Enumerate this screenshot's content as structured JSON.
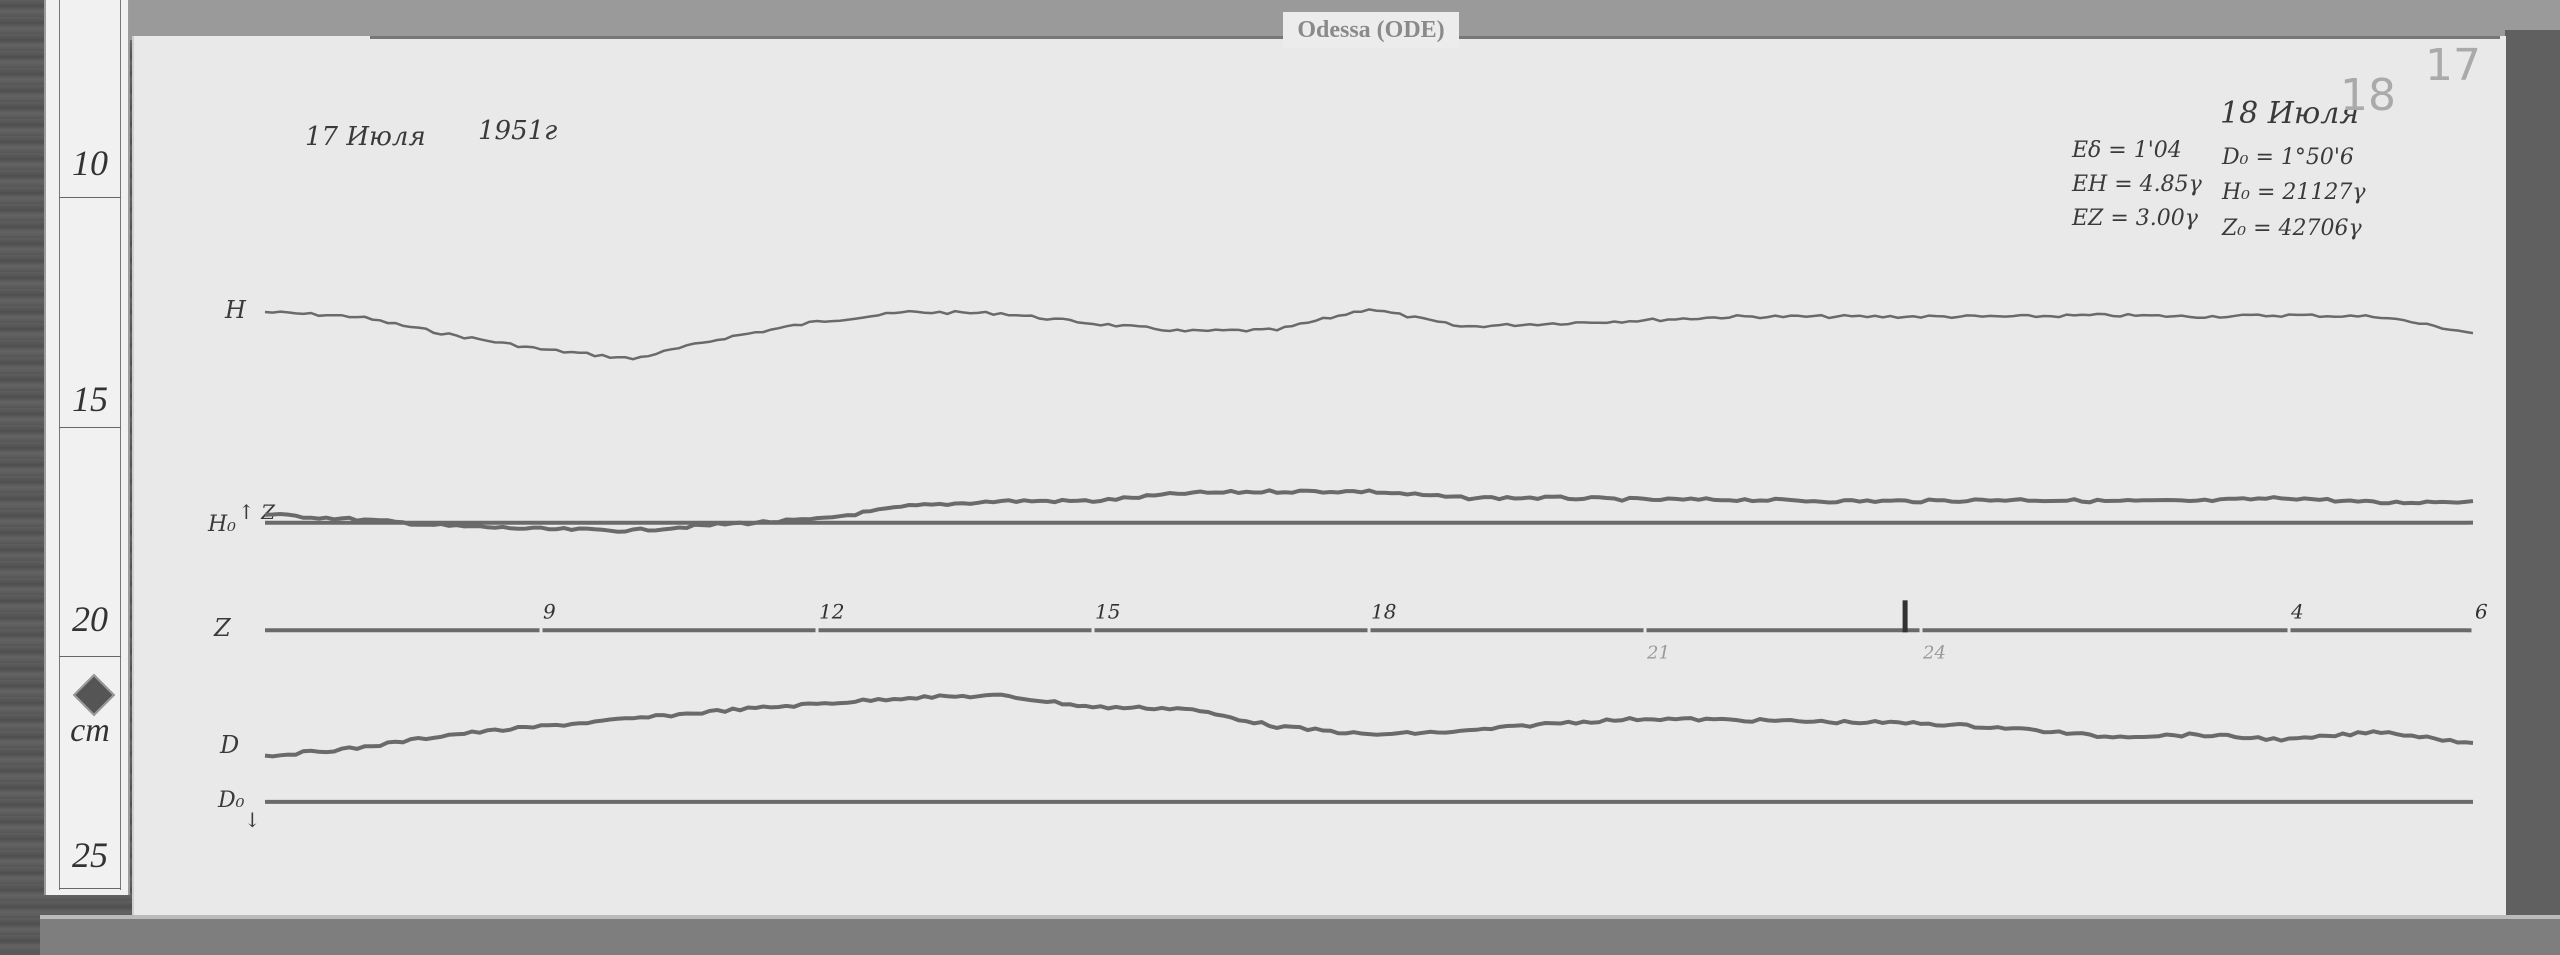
{
  "station_label": "Odessa (ODE)",
  "ruler": {
    "unit": "cm",
    "labels": [
      "10",
      "15",
      "20",
      "25"
    ]
  },
  "header": {
    "date_start": "17 Июля",
    "year": "1951г",
    "date_end": "18 Июля",
    "pencil_marks": [
      "18",
      "17"
    ]
  },
  "constants": {
    "scales": [
      "Eδ = 1'04",
      "EH = 4.85γ",
      "EZ = 3.00γ"
    ],
    "baselines": [
      "D₀ = 1°50'6",
      "H₀ = 21127γ",
      "Z₀ = 42706γ"
    ]
  },
  "trace_labels": {
    "H": "H",
    "H0": "H₀",
    "H0_arrow": "↑ Z",
    "Z": "Z",
    "D": "D",
    "D0": "D₀",
    "D0_arrow": "↓"
  },
  "colors": {
    "paper": "#e9e9e9",
    "trace": "#6a6a6a",
    "ink": "#3a3a3a"
  },
  "chart_data": {
    "type": "line",
    "xlabel": "",
    "ylabel": "",
    "x_unit_note": "hours (UT), 17–18 July 1951",
    "x": [
      6,
      7,
      8,
      9,
      10,
      11,
      12,
      13,
      14,
      15,
      16,
      17,
      18,
      19,
      20,
      21,
      22,
      23,
      24,
      25,
      26,
      27,
      28,
      29,
      30
    ],
    "xlim": [
      6,
      30
    ],
    "x_tick_labels": [
      {
        "hour": 9,
        "label": "9"
      },
      {
        "hour": 12,
        "label": "12"
      },
      {
        "hour": 15,
        "label": "15"
      },
      {
        "hour": 18,
        "label": "18"
      },
      {
        "hour": 21,
        "label": "21"
      },
      {
        "hour": 24,
        "label": "24"
      },
      {
        "hour": 28,
        "label": "4"
      },
      {
        "hour": 30,
        "label": "6"
      }
    ],
    "y_unit": "ruler cm",
    "ylim": [
      9,
      25
    ],
    "series": [
      {
        "name": "H",
        "values": [
          12.5,
          12.6,
          12.99,
          13.31,
          13.52,
          13.06,
          12.71,
          12.5,
          12.53,
          12.75,
          12.92,
          12.89,
          12.43,
          12.82,
          12.75,
          12.68,
          12.6,
          12.6,
          12.6,
          12.6,
          12.57,
          12.6,
          12.57,
          12.6,
          12.96
        ]
      },
      {
        "name": "H₀",
        "baseline": true,
        "values": [
          17.08,
          17.08,
          17.08,
          17.08,
          17.08,
          17.08,
          17.08,
          17.08,
          17.08,
          17.08,
          17.08,
          17.08,
          17.08,
          17.08,
          17.08,
          17.08,
          17.08,
          17.08,
          17.08,
          17.08,
          17.08,
          17.08,
          17.08,
          17.08,
          17.08
        ]
      },
      {
        "name": "Z",
        "values": [
          16.9,
          17.01,
          17.15,
          17.22,
          17.25,
          17.11,
          17.01,
          16.72,
          16.61,
          16.61,
          16.44,
          16.4,
          16.4,
          16.54,
          16.54,
          16.58,
          16.58,
          16.61,
          16.61,
          16.58,
          16.61,
          16.61,
          16.54,
          16.65,
          16.61
        ]
      },
      {
        "name": "Z-time",
        "baseline": true,
        "values": [
          19.42,
          19.42,
          19.42,
          19.42,
          19.42,
          19.42,
          19.42,
          19.42,
          19.42,
          19.42,
          19.42,
          19.42,
          19.42,
          19.42,
          19.42,
          19.42,
          19.42,
          19.42,
          19.42,
          19.42,
          19.42,
          19.42,
          19.42,
          19.42,
          19.42
        ]
      },
      {
        "name": "D",
        "values": [
          22.15,
          21.98,
          21.69,
          21.51,
          21.34,
          21.16,
          21.02,
          20.88,
          20.84,
          21.09,
          21.12,
          21.51,
          21.69,
          21.62,
          21.44,
          21.34,
          21.37,
          21.41,
          21.44,
          21.55,
          21.73,
          21.69,
          21.8,
          21.62,
          21.87
        ]
      },
      {
        "name": "D₀",
        "baseline": true,
        "values": [
          23.15,
          23.15,
          23.15,
          23.15,
          23.15,
          23.15,
          23.15,
          23.15,
          23.15,
          23.15,
          23.15,
          23.15,
          23.15,
          23.15,
          23.15,
          23.15,
          23.15,
          23.15,
          23.15,
          23.15,
          23.15,
          23.15,
          23.15,
          23.15,
          23.15
        ]
      }
    ]
  }
}
